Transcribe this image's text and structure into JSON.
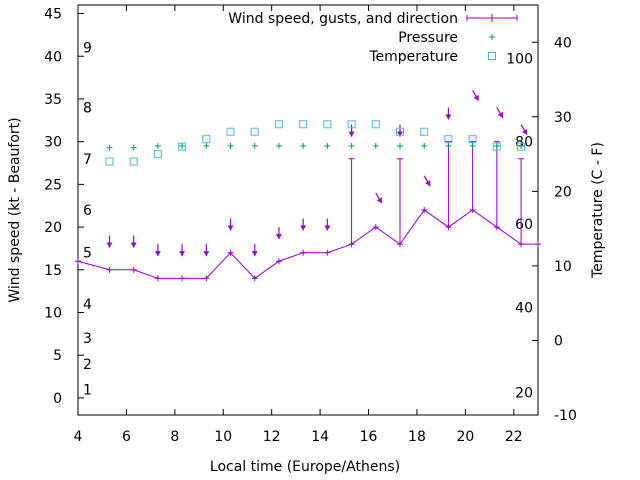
{
  "chart_data": {
    "type": "line",
    "title": "",
    "xlabel": "Local time (Europe/Athens)",
    "ylabel": "Wind speed (kt - Beaufort)",
    "y2label": "Temperature (C - F)",
    "xlim": [
      4,
      23
    ],
    "ylim": [
      -2,
      46
    ],
    "y2lim": [
      -10,
      45
    ],
    "grid": false,
    "legend_position": "top-right",
    "xticks": [
      "4",
      "6",
      "8",
      "10",
      "12",
      "14",
      "16",
      "18",
      "20",
      "22"
    ],
    "yticks": [
      "0",
      "5",
      "10",
      "15",
      "20",
      "25",
      "30",
      "35",
      "40",
      "45"
    ],
    "y2ticks": [
      "-10",
      "0",
      "10",
      "20",
      "30",
      "40"
    ],
    "beaufort_labels": [
      {
        "text": "1",
        "y": 1
      },
      {
        "text": "2",
        "y": 4
      },
      {
        "text": "3",
        "y": 7
      },
      {
        "text": "4",
        "y": 11
      },
      {
        "text": "5",
        "y": 17
      },
      {
        "text": "6",
        "y": 22
      },
      {
        "text": "7",
        "y": 28
      },
      {
        "text": "8",
        "y": 34
      },
      {
        "text": "9",
        "y": 41
      }
    ],
    "fahrenheit_labels": [
      {
        "text": "20",
        "y2": -7
      },
      {
        "text": "40",
        "y2": 4.4
      },
      {
        "text": "60",
        "y2": 15.6
      },
      {
        "text": "80",
        "y2": 26.7
      },
      {
        "text": "100",
        "y2": 37.8
      }
    ],
    "series": [
      {
        "name": "Wind speed, gusts, and direction",
        "color": "#9400d3",
        "x": [
          4,
          5.3,
          6.3,
          7.3,
          8.3,
          9.3,
          10.3,
          11.3,
          12.3,
          13.3,
          14.3,
          15.3,
          16.3,
          17.3,
          18.3,
          19.3,
          20.3,
          21.3,
          22.3,
          23
        ],
        "values": [
          16,
          15,
          15,
          14,
          14,
          14,
          17,
          14,
          16,
          17,
          17,
          18,
          20,
          18,
          22,
          20,
          22,
          20,
          18,
          18
        ],
        "gusts": [
          {
            "x": 15.3,
            "y": 28
          },
          {
            "x": 17.3,
            "y": 28
          },
          {
            "x": 19.3,
            "y": 30
          },
          {
            "x": 20.3,
            "y": 30
          },
          {
            "x": 21.3,
            "y": 30
          },
          {
            "x": 22.3,
            "y": 28
          }
        ],
        "direction_arrows": [
          {
            "x": 5.3,
            "y": 19,
            "dx": 0,
            "dy": -1
          },
          {
            "x": 6.3,
            "y": 19,
            "dx": 0,
            "dy": -1
          },
          {
            "x": 7.3,
            "y": 18,
            "dx": 0,
            "dy": -1
          },
          {
            "x": 8.3,
            "y": 18,
            "dx": 0,
            "dy": -1
          },
          {
            "x": 9.3,
            "y": 18,
            "dx": 0,
            "dy": -1
          },
          {
            "x": 10.3,
            "y": 21,
            "dx": 0,
            "dy": -1
          },
          {
            "x": 11.3,
            "y": 18,
            "dx": 0,
            "dy": -1
          },
          {
            "x": 12.3,
            "y": 20,
            "dx": 0,
            "dy": -1
          },
          {
            "x": 13.3,
            "y": 21,
            "dx": 0,
            "dy": -1
          },
          {
            "x": 14.3,
            "y": 21,
            "dx": 0,
            "dy": -1
          },
          {
            "x": 15.3,
            "y": 32,
            "dx": 0,
            "dy": -1
          },
          {
            "x": 16.3,
            "y": 24,
            "dx": 0.5,
            "dy": -0.85
          },
          {
            "x": 17.3,
            "y": 32,
            "dx": 0,
            "dy": -1
          },
          {
            "x": 18.3,
            "y": 26,
            "dx": 0.5,
            "dy": -0.85
          },
          {
            "x": 19.3,
            "y": 34,
            "dx": 0,
            "dy": -1
          },
          {
            "x": 20.3,
            "y": 36,
            "dx": 0.5,
            "dy": -0.85
          },
          {
            "x": 21.3,
            "y": 34,
            "dx": 0.5,
            "dy": -0.85
          },
          {
            "x": 22.3,
            "y": 32,
            "dx": 0.5,
            "dy": -0.85
          }
        ]
      },
      {
        "name": "Pressure",
        "color": "#009e73",
        "x": [
          5.3,
          6.3,
          7.3,
          8.3,
          9.3,
          10.3,
          11.3,
          12.3,
          13.3,
          14.3,
          15.3,
          16.3,
          17.3,
          18.3,
          19.3,
          20.3,
          21.3,
          22.3
        ],
        "values": [
          29.3,
          29.3,
          29.5,
          29.5,
          29.5,
          29.5,
          29.5,
          29.5,
          29.5,
          29.5,
          29.5,
          29.5,
          29.5,
          29.5,
          29.5,
          29.5,
          29.5,
          29.5
        ]
      },
      {
        "name": "Temperature",
        "color": "#56b4e9",
        "axis": "y2",
        "x": [
          5.3,
          6.3,
          7.3,
          8.3,
          9.3,
          10.3,
          11.3,
          12.3,
          13.3,
          14.3,
          15.3,
          16.3,
          17.3,
          18.3,
          19.3,
          20.3,
          21.3,
          22.3
        ],
        "values": [
          24,
          24,
          25,
          26,
          27,
          28,
          28,
          29,
          29,
          29,
          29,
          29,
          28,
          28,
          27,
          27,
          26,
          26
        ]
      }
    ]
  }
}
